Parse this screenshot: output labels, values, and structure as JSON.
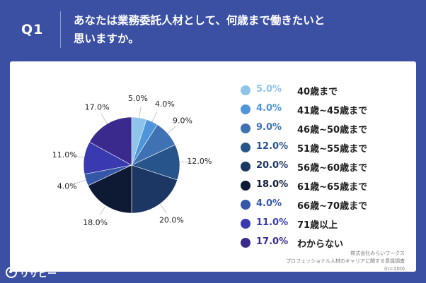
{
  "header": {
    "q_label": "Q1",
    "question_line1": "あなたは業務委託人材として、何歳まで働きたいと",
    "question_line2": "思いますか。"
  },
  "chart_data": {
    "type": "pie",
    "categories": [
      "40歳まで",
      "41歳~45歳まで",
      "46歳~50歳まで",
      "51歳~55歳まで",
      "56歳~60歳まで",
      "61歳~65歳まで",
      "66歳~70歳まで",
      "71歳以上",
      "わからない"
    ],
    "values": [
      5.0,
      4.0,
      9.0,
      12.0,
      20.0,
      18.0,
      4.0,
      11.0,
      17.0
    ],
    "labels": [
      "5.0%",
      "4.0%",
      "9.0%",
      "12.0%",
      "20.0%",
      "18.0%",
      "4.0%",
      "11.0%",
      "17.0%"
    ],
    "colors": [
      "#8ec3ea",
      "#4f95dc",
      "#3f72b3",
      "#28548c",
      "#1c3763",
      "#0e1934",
      "#3656a8",
      "#3a3ab0",
      "#3a2a8e"
    ],
    "legend_position": "right"
  },
  "footnote": {
    "line1": "株式会社みらいワークス",
    "line2": "プロフェッショナル人材のキャリアに関する意識調査",
    "line3": "(n=100)"
  },
  "brand": {
    "name": "リサピー",
    "icon": "risapy-logo-icon"
  }
}
